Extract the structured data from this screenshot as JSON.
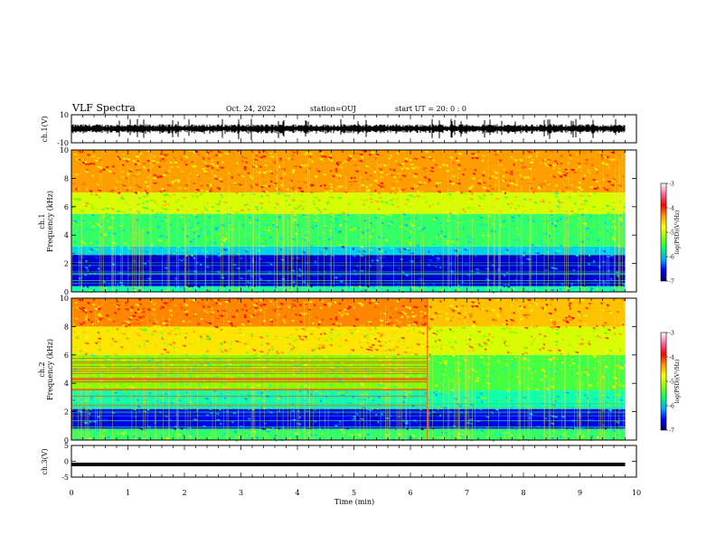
{
  "header": {
    "title": "VLF Spectra",
    "date": "Oct. 24, 2022",
    "station": "station=OUJ",
    "start_ut": "start UT =  20: 0  : 0"
  },
  "chart_data": [
    {
      "type": "line",
      "panel": "ch1-waveform",
      "ylabel": "ch.1(V)",
      "ylim": [
        -10,
        10
      ],
      "y_ticks": [
        "10",
        "-10"
      ],
      "baseline": 0,
      "description_color": "#000000"
    },
    {
      "type": "heatmap",
      "panel": "ch1-spectrogram",
      "ylabel": "ch.1\nFrequency (kHz)",
      "ylabel_line1": "ch.1",
      "ylabel_line2": "Frequency (kHz)",
      "ylim": [
        0,
        10
      ],
      "y_ticks": [
        "0",
        "2",
        "4",
        "6",
        "8",
        "10"
      ],
      "bands": [
        {
          "from": 0,
          "to": 0.4,
          "level": -5.2
        },
        {
          "from": 0.4,
          "to": 2.6,
          "level": -6.6
        },
        {
          "from": 2.6,
          "to": 3.2,
          "level": -5.6
        },
        {
          "from": 3.2,
          "to": 5.5,
          "level": -5.0
        },
        {
          "from": 5.5,
          "to": 7.0,
          "level": -4.3
        },
        {
          "from": 7.0,
          "to": 10.0,
          "level": -3.6
        }
      ]
    },
    {
      "type": "heatmap",
      "panel": "ch2-spectrogram",
      "ylabel": "ch.2\nFrequency (kHz)",
      "ylabel_line1": "ch.2",
      "ylabel_line2": "Frequency (kHz)",
      "ylim": [
        0,
        10
      ],
      "y_ticks": [
        "0",
        "2",
        "4",
        "6",
        "8",
        "10"
      ],
      "change_at_min": 6.3,
      "bands": [
        {
          "from": 0,
          "to": 0.8,
          "level": -5.0
        },
        {
          "from": 0.8,
          "to": 2.2,
          "level": -6.5
        },
        {
          "from": 2.2,
          "to": 3.5,
          "level": -5.2
        },
        {
          "from": 3.5,
          "to": 6.0,
          "level": -4.6
        },
        {
          "from": 6.0,
          "to": 8.0,
          "level": -4.0
        },
        {
          "from": 8.0,
          "to": 10.0,
          "level": -3.5
        }
      ]
    },
    {
      "type": "line",
      "panel": "ch3-waveform",
      "ylabel": "ch.3(V)",
      "ylim": [
        -5,
        5
      ],
      "y_ticks": [
        "5",
        "0",
        "-5"
      ],
      "baseline": -1
    }
  ],
  "colorbar": {
    "label": "log(PSD)(V²/Hz)",
    "range": [
      -7,
      -3
    ],
    "ticks": [
      "-3",
      "-4",
      "-5",
      "-6",
      "-7"
    ],
    "colors": [
      "#000066",
      "#0000ff",
      "#00aaff",
      "#00ff66",
      "#88ff00",
      "#ffff00",
      "#ff9900",
      "#ff0000",
      "#ff6699",
      "#ffffff"
    ]
  },
  "x_axis": {
    "label": "Time (min)",
    "range": [
      0,
      10
    ],
    "ticks": [
      "0",
      "1",
      "2",
      "3",
      "4",
      "5",
      "6",
      "7",
      "8",
      "9",
      "10"
    ],
    "data_end_min": 9.8
  }
}
